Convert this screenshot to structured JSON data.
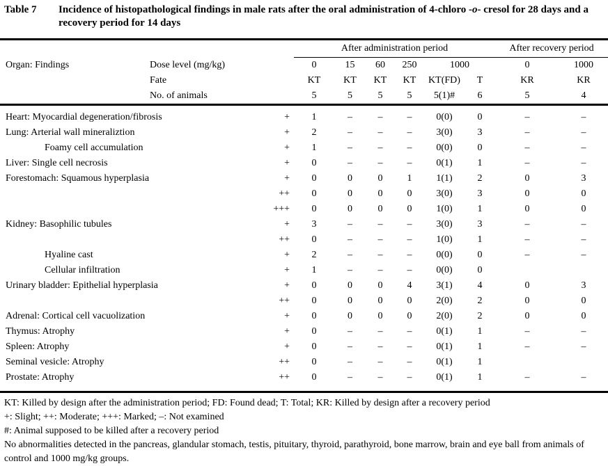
{
  "title": {
    "label": "Table 7",
    "text_prefix": "Incidence of histopathological findings in male rats after the oral administration of 4-chloro -",
    "italic_part": "o",
    "text_suffix": "- cresol for 28 days and a recovery period for 14 days"
  },
  "table": {
    "organ_header": "Organ: Findings",
    "group_admin": "After administration period",
    "group_recovery": "After recovery period",
    "dose_label": "Dose level (mg/kg)",
    "fate_label": "Fate",
    "animals_label": "No. of animals",
    "dose_values": [
      "0",
      "15",
      "60",
      "250",
      "1000",
      "0",
      "1000"
    ],
    "fate_values": [
      "KT",
      "KT",
      "KT",
      "KT",
      "KT(FD)",
      "T",
      "KR",
      "KR"
    ],
    "animals_values": [
      "5",
      "5",
      "5",
      "5",
      "5(1)#",
      "6",
      "5",
      "4"
    ],
    "rows": [
      {
        "organ": "Heart: Myocardial degeneration/fibrosis",
        "indent": false,
        "grade": "+",
        "cells": [
          "1",
          "–",
          "–",
          "–",
          "0(0)",
          "0",
          "–",
          "–"
        ]
      },
      {
        "organ": "Lung: Arterial wall mineraliztion",
        "indent": false,
        "grade": "+",
        "cells": [
          "2",
          "–",
          "–",
          "–",
          "3(0)",
          "3",
          "–",
          "–"
        ]
      },
      {
        "organ": "Foamy cell accumulation",
        "indent": true,
        "grade": "+",
        "cells": [
          "1",
          "–",
          "–",
          "–",
          "0(0)",
          "0",
          "–",
          "–"
        ]
      },
      {
        "organ": "Liver: Single cell necrosis",
        "indent": false,
        "grade": "+",
        "cells": [
          "0",
          "–",
          "–",
          "–",
          "0(1)",
          "1",
          "–",
          "–"
        ]
      },
      {
        "organ": "Forestomach: Squamous hyperplasia",
        "indent": false,
        "grade": "+",
        "cells": [
          "0",
          "0",
          "0",
          "1",
          "1(1)",
          "2",
          "0",
          "3"
        ]
      },
      {
        "organ": "",
        "indent": false,
        "grade": "++",
        "cells": [
          "0",
          "0",
          "0",
          "0",
          "3(0)",
          "3",
          "0",
          "0"
        ]
      },
      {
        "organ": "",
        "indent": false,
        "grade": "+++",
        "cells": [
          "0",
          "0",
          "0",
          "0",
          "1(0)",
          "1",
          "0",
          "0"
        ]
      },
      {
        "organ": "Kidney: Basophilic tubules",
        "indent": false,
        "grade": "+",
        "cells": [
          "3",
          "–",
          "–",
          "–",
          "3(0)",
          "3",
          "–",
          "–"
        ]
      },
      {
        "organ": "",
        "indent": false,
        "grade": "++",
        "cells": [
          "0",
          "–",
          "–",
          "–",
          "1(0)",
          "1",
          "–",
          "–"
        ]
      },
      {
        "organ": "Hyaline cast",
        "indent": true,
        "grade": "+",
        "cells": [
          "2",
          "–",
          "–",
          "–",
          "0(0)",
          "0",
          "–",
          "–"
        ]
      },
      {
        "organ": "Cellular infiltration",
        "indent": true,
        "grade": "+",
        "cells": [
          "1",
          "–",
          "–",
          "–",
          "0(0)",
          "0",
          "",
          ""
        ]
      },
      {
        "organ": "Urinary bladder: Epithelial hyperplasia",
        "indent": false,
        "grade": "+",
        "cells": [
          "0",
          "0",
          "0",
          "4",
          "3(1)",
          "4",
          "0",
          "3"
        ]
      },
      {
        "organ": "",
        "indent": false,
        "grade": "++",
        "cells": [
          "0",
          "0",
          "0",
          "0",
          "2(0)",
          "2",
          "0",
          "0"
        ]
      },
      {
        "organ": "Adrenal: Cortical cell vacuolization",
        "indent": false,
        "grade": "+",
        "cells": [
          "0",
          "0",
          "0",
          "0",
          "2(0)",
          "2",
          "0",
          "0"
        ]
      },
      {
        "organ": "Thymus: Atrophy",
        "indent": false,
        "grade": "+",
        "cells": [
          "0",
          "–",
          "–",
          "–",
          "0(1)",
          "1",
          "–",
          "–"
        ]
      },
      {
        "organ": "Spleen: Atrophy",
        "indent": false,
        "grade": "+",
        "cells": [
          "0",
          "–",
          "–",
          "–",
          "0(1)",
          "1",
          "–",
          "–"
        ]
      },
      {
        "organ": "Seminal vesicle: Atrophy",
        "indent": false,
        "grade": "++",
        "cells": [
          "0",
          "–",
          "–",
          "–",
          "0(1)",
          "1",
          "",
          ""
        ]
      },
      {
        "organ": "Prostate: Atrophy",
        "indent": false,
        "grade": "++",
        "cells": [
          "0",
          "–",
          "–",
          "–",
          "0(1)",
          "1",
          "–",
          "–"
        ]
      }
    ]
  },
  "footnotes": [
    "KT: Killed by design after the administration period; FD: Found dead; T: Total; KR: Killed by design after a recovery period",
    "+: Slight; ++: Moderate; +++: Marked; –: Not examined",
    "#: Animal supposed to be killed after a recovery period",
    "No abnormalities detected in the pancreas, glandular stomach, testis, pituitary, thyroid, parathyroid, bone marrow, brain and eye ball from animals of control and 1000 mg/kg groups."
  ]
}
